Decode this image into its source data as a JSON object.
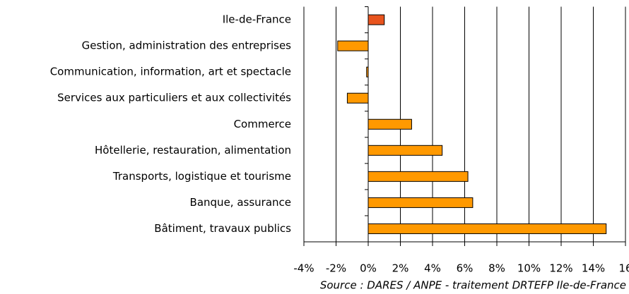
{
  "chart_data": {
    "type": "barh",
    "categories": [
      "Ile-de-France",
      "Gestion, administration des entreprises",
      "Communication, information, art et spectacle",
      "Services aux particuliers et aux collectivités",
      "Commerce",
      "Hôtellerie, restauration, alimentation",
      "Transports, logistique et tourisme",
      "Banque, assurance",
      "Bâtiment, travaux publics"
    ],
    "values": [
      1.0,
      -1.9,
      -0.1,
      -1.3,
      2.7,
      4.6,
      6.2,
      6.5,
      14.8
    ],
    "colors": [
      "#e8541e",
      "#ff9900",
      "#ff9900",
      "#ff9900",
      "#ff9900",
      "#ff9900",
      "#ff9900",
      "#ff9900",
      "#ff9900"
    ],
    "xlim": [
      -4,
      16
    ],
    "xticks": [
      {
        "value": -4,
        "label": "-4%"
      },
      {
        "value": -2,
        "label": "-2%"
      },
      {
        "value": 0,
        "label": "0%"
      },
      {
        "value": 2,
        "label": "2%"
      },
      {
        "value": 4,
        "label": "4%"
      },
      {
        "value": 6,
        "label": "6%"
      },
      {
        "value": 8,
        "label": "8%"
      },
      {
        "value": 10,
        "label": "10%"
      },
      {
        "value": 12,
        "label": "12%"
      },
      {
        "value": 14,
        "label": "14%"
      },
      {
        "value": 16,
        "label": "16"
      }
    ],
    "grid": true,
    "source": "Source : DARES / ANPE - traitement DRTEFP Ile-de-France"
  }
}
